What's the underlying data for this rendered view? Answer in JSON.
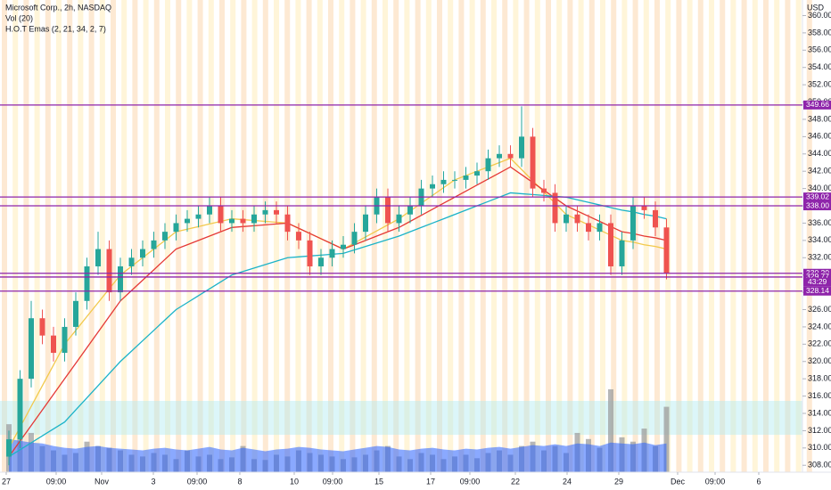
{
  "chart_data": {
    "type": "candlestick",
    "title": "Microsoft Corp., 2h, NASDAQ",
    "indicators": [
      "Vol (20)",
      "H.O.T Emas (2, 21, 34, 2, 7)"
    ],
    "currency": "USD",
    "countdown": "43:29",
    "up_color": "#26a69a",
    "down_color": "#ef5350",
    "xlim": [
      -0.8,
      71.2
    ],
    "xticks": [
      {
        "value": -0.24,
        "label": "27"
      },
      {
        "value": 4.24,
        "label": "09:00"
      },
      {
        "value": 8.32,
        "label": "Nov"
      },
      {
        "value": 12.96,
        "label": "3"
      },
      {
        "value": 16.88,
        "label": "09:00"
      },
      {
        "value": 20.72,
        "label": "8"
      },
      {
        "value": 25.6,
        "label": "10"
      },
      {
        "value": 29.04,
        "label": "09:00"
      },
      {
        "value": 33.2,
        "label": "15"
      },
      {
        "value": 37.84,
        "label": "17"
      },
      {
        "value": 41.36,
        "label": "09:00"
      },
      {
        "value": 45.44,
        "label": "22"
      },
      {
        "value": 50.08,
        "label": "24"
      },
      {
        "value": 54.72,
        "label": "29"
      },
      {
        "value": 60,
        "label": "Dec"
      },
      {
        "value": 63.36,
        "label": "09:00"
      },
      {
        "value": 67.28,
        "label": "6"
      }
    ],
    "ylim": [
      307.2,
      361.8
    ],
    "yticks": [
      {
        "value": 308,
        "label": "308.00"
      },
      {
        "value": 310,
        "label": "310.00"
      },
      {
        "value": 312,
        "label": "312.00"
      },
      {
        "value": 314,
        "label": "314.00"
      },
      {
        "value": 316,
        "label": "316.00"
      },
      {
        "value": 318,
        "label": "318.00"
      },
      {
        "value": 320,
        "label": "320.00"
      },
      {
        "value": 322,
        "label": "322.00"
      },
      {
        "value": 324,
        "label": "324.00"
      },
      {
        "value": 326,
        "label": "326.00"
      },
      {
        "value": 328,
        "label": "328.00"
      },
      {
        "value": 330,
        "label": "330.00"
      },
      {
        "value": 332,
        "label": "332.00"
      },
      {
        "value": 334,
        "label": "334.00"
      },
      {
        "value": 336,
        "label": "336.00"
      },
      {
        "value": 338,
        "label": "338.00"
      },
      {
        "value": 340,
        "label": "340.00"
      },
      {
        "value": 342,
        "label": "342.00"
      },
      {
        "value": 344,
        "label": "344.00"
      },
      {
        "value": 346,
        "label": "346.00"
      },
      {
        "value": 348,
        "label": "348.00"
      },
      {
        "value": 350,
        "label": "350.00"
      },
      {
        "value": 352,
        "label": "352.00"
      },
      {
        "value": 354,
        "label": "354.00"
      },
      {
        "value": 356,
        "label": "356.00"
      },
      {
        "value": 358,
        "label": "358.00"
      },
      {
        "value": 360,
        "label": "360.00"
      }
    ],
    "levels": [
      {
        "value": 349.66,
        "label": "349.66"
      },
      {
        "value": 339.02,
        "label": "339.02"
      },
      {
        "value": 338,
        "label": "338.00"
      },
      {
        "value": 330.2,
        "label": "330.20"
      },
      {
        "value": 329.77,
        "label": "329.77"
      },
      {
        "value": 328.14,
        "label": "328.14"
      }
    ],
    "level_color": "#8e24aa",
    "candles": {
      "open": [
        309,
        311,
        318,
        325,
        323,
        321,
        324,
        327,
        331,
        333,
        328,
        331,
        332,
        333,
        334,
        335,
        336,
        336.5,
        337,
        338,
        336,
        336.5,
        336,
        337,
        337.5,
        337,
        335,
        334,
        331,
        332,
        333,
        333.5,
        335,
        337,
        339,
        336,
        337,
        338,
        340,
        340.5,
        341,
        341,
        341.5,
        342,
        343.5,
        344,
        343.5,
        346,
        340,
        339.5,
        336,
        337,
        336,
        335,
        336,
        331,
        334,
        338,
        337.5,
        335.5
      ],
      "high": [
        312,
        319,
        327,
        326,
        324,
        325,
        328,
        332,
        335,
        334,
        332,
        333,
        334,
        335,
        336,
        337,
        337.5,
        338,
        339,
        339,
        337.5,
        337.5,
        338,
        338.5,
        338.5,
        338,
        336,
        335,
        333,
        334,
        334.5,
        336,
        338,
        340,
        340,
        338,
        339,
        341,
        341.5,
        342,
        342,
        342.5,
        343,
        344.5,
        345,
        345,
        349.5,
        347,
        341,
        340.5,
        338,
        338,
        337,
        337,
        337,
        335,
        339,
        339,
        338.5,
        336.5
      ],
      "low": [
        308,
        310,
        317,
        322,
        320,
        320,
        323,
        326,
        330,
        327,
        327,
        330,
        331,
        332,
        333,
        334,
        335,
        335.5,
        336,
        335,
        335,
        335,
        335,
        336,
        336,
        334,
        333,
        330,
        330,
        331,
        332,
        332.5,
        334,
        336,
        335,
        335,
        336,
        337,
        339,
        339.5,
        340,
        340,
        340.5,
        341,
        342.5,
        342.5,
        342.5,
        339,
        338.5,
        335,
        335,
        335,
        334,
        334,
        330,
        330,
        333,
        336.5,
        334.5,
        329.5
      ],
      "close": [
        311,
        318,
        325,
        323,
        321,
        324,
        327,
        331,
        333,
        328,
        331,
        332,
        333,
        334,
        335,
        336,
        336.5,
        337,
        338,
        336,
        336.5,
        336,
        337,
        337.5,
        337,
        335,
        334,
        331,
        332,
        333,
        333.5,
        335,
        337,
        339,
        336,
        337,
        338,
        340,
        340.5,
        341,
        341,
        341.5,
        342,
        343.5,
        344,
        343.5,
        346,
        340,
        339.5,
        336,
        337,
        336,
        335,
        336,
        331,
        334,
        338,
        337.5,
        335.5,
        330.2
      ]
    },
    "ema": [
      {
        "color": "#f2c94c",
        "values": [
          310,
          312.4,
          314.8,
          317.2,
          319.6,
          322,
          323.6,
          325.2,
          326.8,
          328.4,
          330,
          331,
          332,
          333,
          334,
          335,
          335.3,
          335.6,
          335.9,
          336.2,
          336.5,
          336.4,
          336.3,
          336.2,
          336.1,
          336,
          335.4,
          334.8,
          334.2,
          333.6,
          333,
          333.7,
          334.4,
          335.1,
          335.8,
          336.5,
          337.4,
          338.3,
          339.2,
          340.1,
          341,
          341.5,
          342,
          342.5,
          343,
          343.5,
          342.2,
          340.9,
          339.6,
          338.3,
          337,
          336.4,
          335.8,
          335.2,
          334.6,
          334,
          333.8,
          333.5,
          333.3,
          333
        ]
      },
      {
        "color": "#e53935",
        "values": [
          309,
          310.8,
          312.6,
          314.4,
          316.2,
          318,
          319.8,
          321.6,
          323.4,
          325.2,
          327,
          328.2,
          329.4,
          330.6,
          331.8,
          333,
          333.5,
          334,
          334.5,
          335,
          335.5,
          335.6,
          335.7,
          335.8,
          335.9,
          336,
          335.4,
          334.8,
          334.2,
          333.6,
          333,
          333.5,
          334,
          334.5,
          335,
          335.5,
          336.2,
          336.9,
          337.6,
          338.3,
          339,
          339.7,
          340.4,
          341.1,
          341.8,
          342.5,
          341.6,
          340.7,
          339.8,
          338.9,
          338,
          337.4,
          336.8,
          336.2,
          335.6,
          335,
          334.8,
          334.5,
          334.3,
          334
        ]
      },
      {
        "color": "#1bb3c8",
        "values": [
          309,
          309.8,
          310.6,
          311.4,
          312.2,
          313,
          314.4,
          315.8,
          317.2,
          318.6,
          320,
          321.2,
          322.4,
          323.6,
          324.8,
          326,
          326.8,
          327.6,
          328.4,
          329.2,
          330,
          330.4,
          330.8,
          331.2,
          331.6,
          332,
          332.1,
          332.2,
          332.3,
          332.4,
          332.5,
          332.9,
          333.3,
          333.7,
          334.1,
          334.5,
          335,
          335.5,
          336,
          336.5,
          337,
          337.5,
          338,
          338.5,
          339,
          339.5,
          339.4,
          339.3,
          339.2,
          339.1,
          339,
          338.7,
          338.4,
          338.1,
          337.8,
          337.5,
          337.3,
          337,
          336.8,
          336.5
        ]
      }
    ],
    "volume": {
      "color": "#9e9e9e",
      "values": [
        55,
        40,
        45,
        30,
        25,
        20,
        22,
        35,
        30,
        28,
        25,
        20,
        18,
        22,
        20,
        15,
        25,
        18,
        20,
        15,
        17,
        30,
        15,
        14,
        20,
        18,
        25,
        22,
        20,
        18,
        15,
        17,
        20,
        25,
        30,
        18,
        15,
        22,
        20,
        15,
        18,
        20,
        16,
        22,
        25,
        20,
        30,
        35,
        25,
        30,
        22,
        45,
        38,
        28,
        95,
        40,
        35,
        50,
        30,
        75
      ]
    },
    "volume_ma": {
      "color": "#2962ff",
      "values": [
        38,
        36,
        34,
        33,
        30,
        28,
        27,
        29,
        30,
        28,
        27,
        26,
        25,
        27,
        28,
        26,
        25,
        27,
        29,
        26,
        25,
        28,
        26,
        24,
        26,
        27,
        29,
        28,
        26,
        25,
        24,
        26,
        28,
        30,
        29,
        26,
        25,
        27,
        28,
        26,
        25,
        27,
        26,
        28,
        29,
        27,
        29,
        31,
        30,
        32,
        30,
        33,
        32,
        30,
        34,
        33,
        32,
        34,
        31,
        33
      ]
    }
  }
}
